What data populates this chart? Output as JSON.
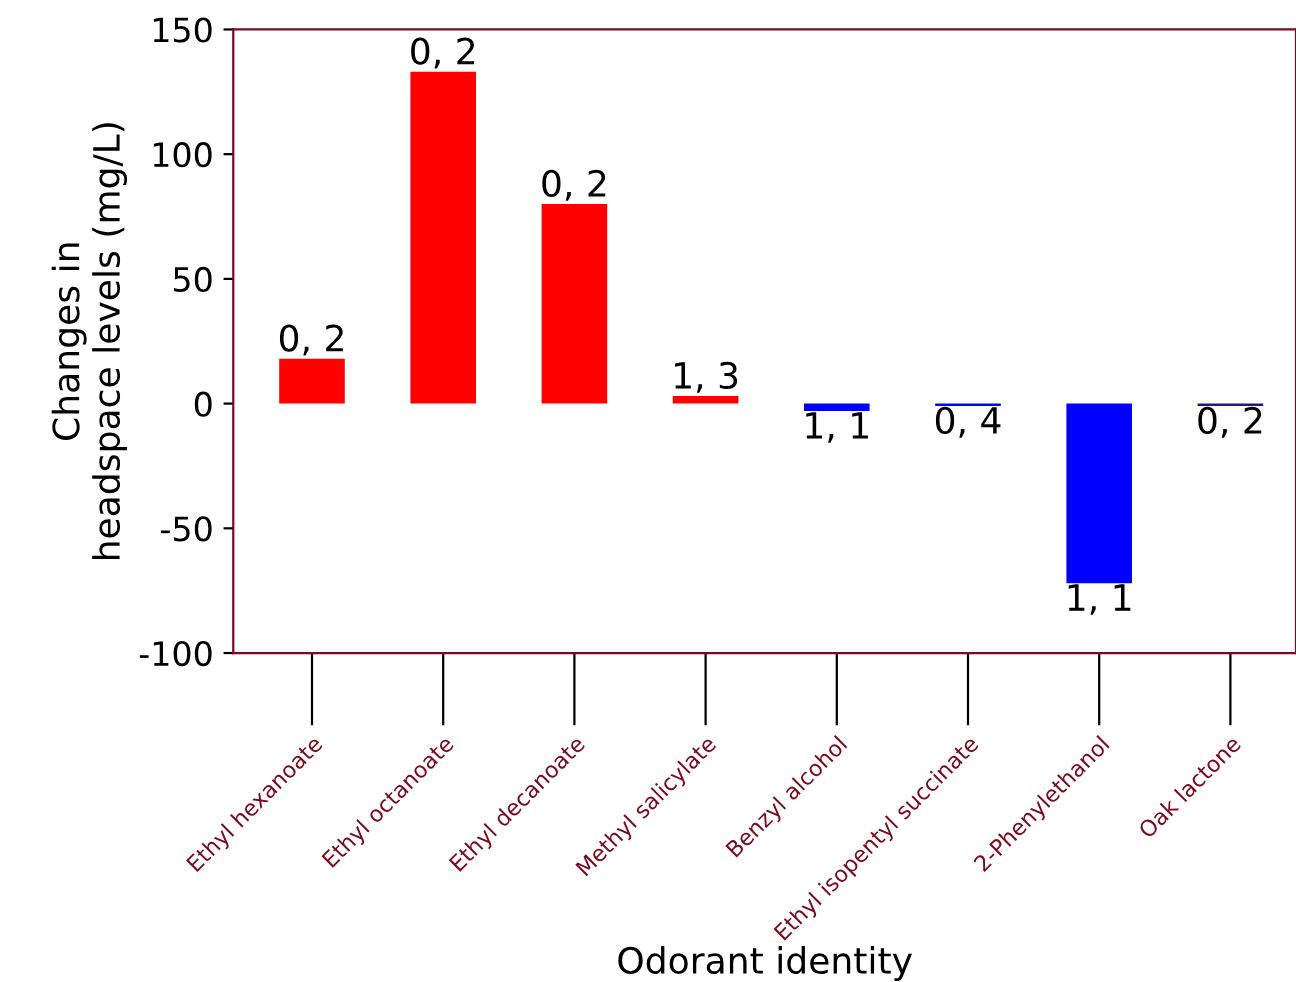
{
  "chart_data": {
    "type": "bar",
    "xlabel": "Odorant identity",
    "ylabel": "Changes in\nheadspace levels (mg/L)",
    "categories": [
      "Ethyl hexanoate",
      "Ethyl octanoate",
      "Ethyl decanoate",
      "Methyl salicylate",
      "Benzyl alcohol",
      "Ethyl isopentyl succinate",
      "2-Phenylethanol",
      "Oak lactone"
    ],
    "values": [
      18,
      133,
      80,
      3,
      -3,
      -1,
      -72,
      -1
    ],
    "colors": [
      "#ff0000",
      "#ff0000",
      "#ff0000",
      "#ff0000",
      "#0000ff",
      "#0000ff",
      "#0000ff",
      "#1a1a80"
    ],
    "annotations": [
      {
        "text": "0, 2",
        "x": "Ethyl hexanoate",
        "y": 18
      },
      {
        "text": "0, 2",
        "x": "Ethyl octanoate",
        "y": 133
      },
      {
        "text": "0, 2",
        "x": "Ethyl decanoate",
        "y": 80
      },
      {
        "text": "1, 3",
        "x": "Methyl salicylate",
        "y": 3
      },
      {
        "text": "1, 1",
        "x": "Benzyl alcohol",
        "y": -3
      },
      {
        "text": "0, 4",
        "x": "Ethyl isopentyl succinate",
        "y": -1
      },
      {
        "text": "1, 1",
        "x": "2-Phenylethanol",
        "y": -72
      },
      {
        "text": "0, 2",
        "x": "Oak lactone",
        "y": -1
      }
    ],
    "ylim": [
      -100,
      150
    ],
    "yticks": [
      -100,
      -50,
      0,
      50,
      100,
      150
    ],
    "grid": false,
    "legend": false
  }
}
